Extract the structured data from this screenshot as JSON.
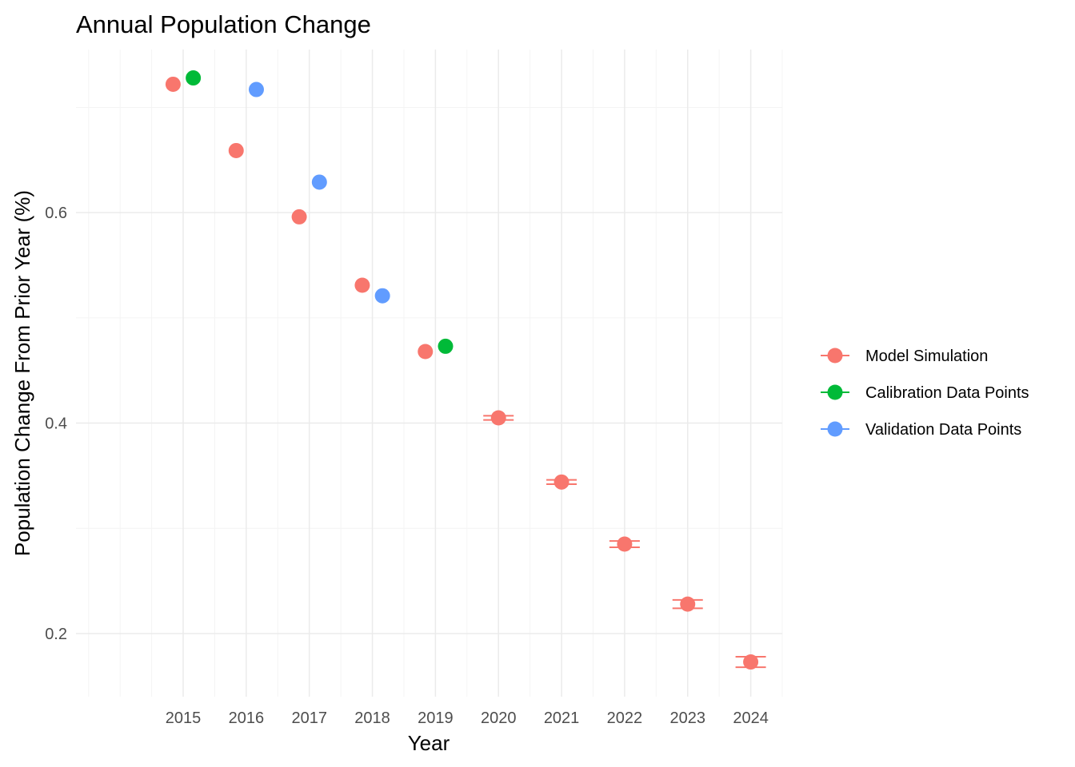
{
  "chart_data": {
    "type": "scatter",
    "title": "Annual Population Change",
    "xlabel": "Year",
    "ylabel": "Population Change From Prior Year (%)",
    "xlim": [
      2013.3,
      2024.5
    ],
    "ylim": [
      0.14,
      0.755
    ],
    "x_ticks": [
      2015,
      2016,
      2017,
      2018,
      2019,
      2020,
      2021,
      2022,
      2023,
      2024
    ],
    "y_ticks": [
      0.2,
      0.4,
      0.6
    ],
    "y_tick_labels": [
      "0.2",
      "0.4",
      "0.6"
    ],
    "grid": true,
    "legend_position": "right",
    "series": [
      {
        "name": "Model Simulation",
        "color": "#F8766D",
        "points": [
          {
            "x": 2014.84,
            "y": 0.722
          },
          {
            "x": 2015.84,
            "y": 0.659
          },
          {
            "x": 2016.84,
            "y": 0.596
          },
          {
            "x": 2017.84,
            "y": 0.531
          },
          {
            "x": 2018.84,
            "y": 0.468
          },
          {
            "x": 2020,
            "y": 0.405,
            "err": 0.002
          },
          {
            "x": 2021,
            "y": 0.344,
            "err": 0.002
          },
          {
            "x": 2022,
            "y": 0.285,
            "err": 0.003
          },
          {
            "x": 2023,
            "y": 0.228,
            "err": 0.004
          },
          {
            "x": 2024,
            "y": 0.173,
            "err": 0.005
          }
        ]
      },
      {
        "name": "Calibration Data Points",
        "color": "#00BA38",
        "points": [
          {
            "x": 2015.16,
            "y": 0.728
          },
          {
            "x": 2019.16,
            "y": 0.473
          }
        ]
      },
      {
        "name": "Validation Data Points",
        "color": "#619CFF",
        "points": [
          {
            "x": 2016.16,
            "y": 0.717
          },
          {
            "x": 2017.16,
            "y": 0.629
          },
          {
            "x": 2018.16,
            "y": 0.521
          }
        ]
      }
    ]
  }
}
